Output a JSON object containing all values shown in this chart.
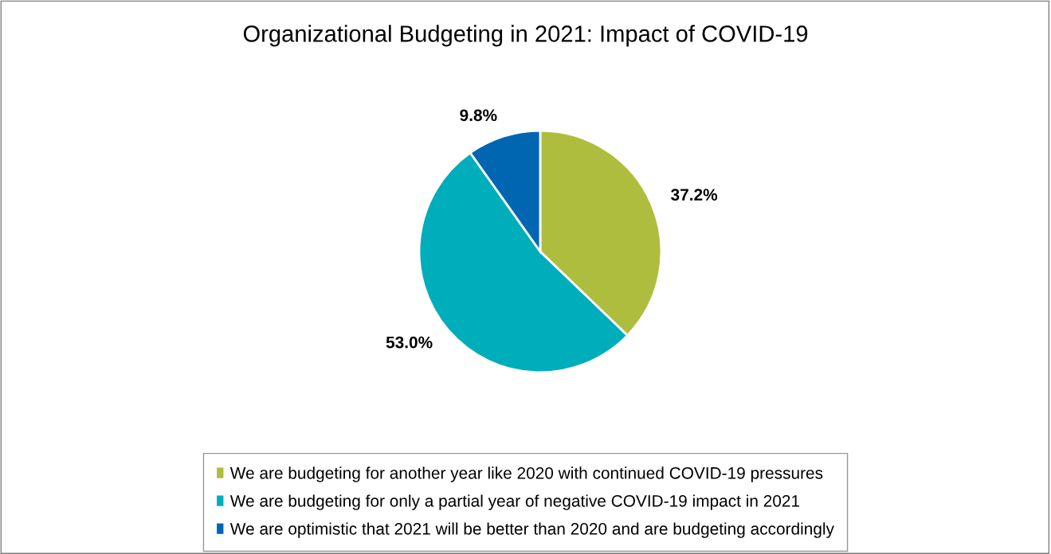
{
  "chart_data": {
    "type": "pie",
    "title": "Organizational Budgeting in 2021: Impact of COVID-19",
    "categories": [
      "We are budgeting for another year like 2020 with continued COVID-19 pressures",
      "We are budgeting for only a partial year of negative COVID-19 impact in 2021",
      "We are optimistic that 2021 will be better than 2020 and are budgeting accordingly"
    ],
    "values": [
      37.2,
      53.0,
      9.8
    ],
    "value_labels": [
      "37.2%",
      "53.0%",
      "9.8%"
    ],
    "colors": [
      "#afbd3f",
      "#00adbb",
      "#0066b2"
    ],
    "legend": "bottom"
  }
}
